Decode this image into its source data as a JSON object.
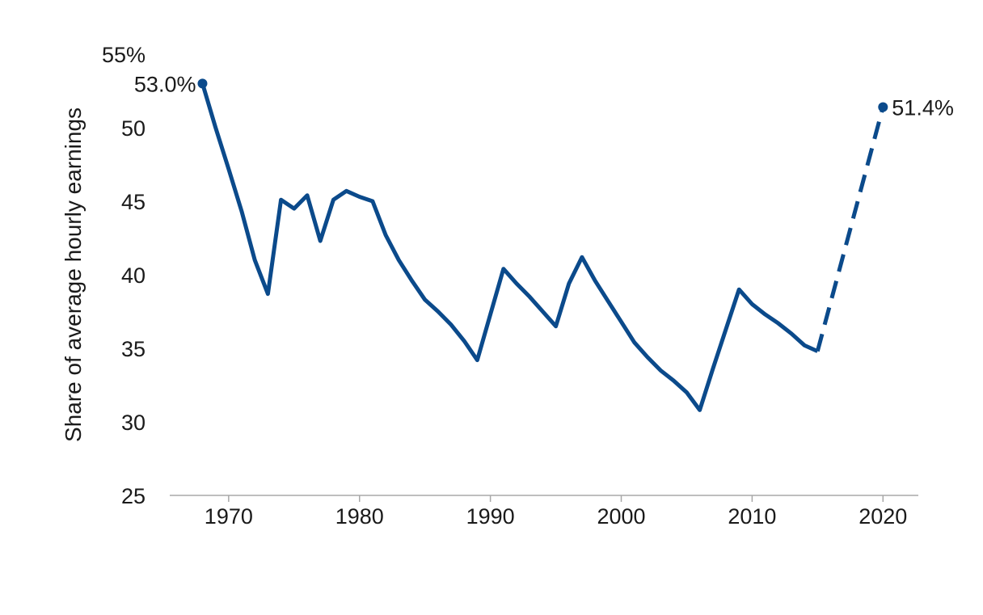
{
  "chart_data": {
    "type": "line",
    "title": "",
    "xlabel": "",
    "ylabel": "Share of average hourly earnings",
    "xlim": [
      1965.5,
      2022.7
    ],
    "ylim": [
      25,
      55
    ],
    "x_ticks": [
      1970,
      1980,
      1990,
      2000,
      2010,
      2020
    ],
    "x_tick_labels": [
      "1970",
      "1980",
      "1990",
      "2000",
      "2010",
      "2020"
    ],
    "y_ticks": [
      25,
      30,
      35,
      40,
      45,
      50,
      55
    ],
    "y_tick_labels": [
      "25",
      "30",
      "35",
      "40",
      "45",
      "50",
      "55%"
    ],
    "grid": false,
    "line_color": "#0b4a8b",
    "series": [
      {
        "style": "solid",
        "x": [
          1968,
          1969,
          1970,
          1971,
          1972,
          1973,
          1974,
          1975,
          1976,
          1977,
          1978,
          1979,
          1980,
          1981,
          1982,
          1983,
          1984,
          1985,
          1986,
          1987,
          1988,
          1989,
          1990,
          1991,
          1992,
          1993,
          1994,
          1995,
          1996,
          1997,
          1998,
          1999,
          2000,
          2001,
          2002,
          2003,
          2004,
          2005,
          2006,
          2007,
          2008,
          2009,
          2010,
          2011,
          2012,
          2013,
          2014,
          2015
        ],
        "y": [
          53.0,
          50.0,
          47.2,
          44.3,
          41.0,
          38.7,
          45.1,
          44.5,
          45.4,
          42.3,
          45.1,
          45.7,
          45.3,
          45.0,
          42.7,
          41.0,
          39.6,
          38.3,
          37.5,
          36.6,
          35.5,
          34.2,
          37.3,
          40.4,
          39.4,
          38.5,
          37.5,
          36.5,
          39.4,
          41.2,
          39.6,
          38.2,
          36.8,
          35.4,
          34.4,
          33.5,
          32.8,
          32.0,
          30.8,
          33.6,
          36.3,
          39.0,
          38.0,
          37.3,
          36.7,
          36.0,
          35.2,
          34.8
        ]
      },
      {
        "style": "dashed",
        "x": [
          2015,
          2020
        ],
        "y": [
          34.8,
          51.4
        ]
      }
    ],
    "annotations": [
      {
        "x": 1968,
        "y": 53.0,
        "text": "53.0%"
      },
      {
        "x": 2020,
        "y": 51.4,
        "text": "51.4%"
      }
    ]
  }
}
